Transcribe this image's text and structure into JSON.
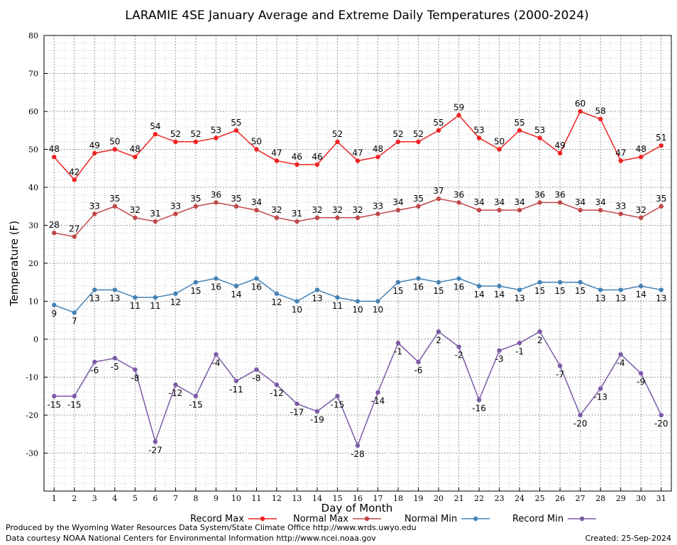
{
  "chart_data": {
    "type": "line",
    "title": "LARAMIE 4SE January Average and Extreme Daily Temperatures (2000-2024)",
    "xlabel": "Day of Month",
    "ylabel": "Temperature (F)",
    "ylim": [
      -40,
      80
    ],
    "yticks": [
      -30,
      -20,
      -10,
      0,
      10,
      20,
      30,
      40,
      50,
      60,
      70,
      80
    ],
    "xlim": [
      0.5,
      31.5
    ],
    "x": [
      1,
      2,
      3,
      4,
      5,
      6,
      7,
      8,
      9,
      10,
      11,
      12,
      13,
      14,
      15,
      16,
      17,
      18,
      19,
      20,
      21,
      22,
      23,
      24,
      25,
      26,
      27,
      28,
      29,
      30,
      31
    ],
    "grid": true,
    "legend_position": "bottom",
    "series": [
      {
        "name": "Record Max",
        "color": "#ee2222",
        "values": [
          48,
          42,
          49,
          50,
          48,
          54,
          52,
          52,
          53,
          55,
          50,
          47,
          46,
          46,
          52,
          47,
          48,
          52,
          52,
          55,
          59,
          53,
          50,
          55,
          53,
          49,
          60,
          58,
          47,
          48,
          51
        ]
      },
      {
        "name": "Normal Max",
        "color": "#c04848",
        "values": [
          28,
          27,
          33,
          35,
          32,
          31,
          33,
          35,
          36,
          35,
          34,
          32,
          31,
          32,
          32,
          32,
          33,
          34,
          35,
          37,
          36,
          34,
          34,
          34,
          36,
          36,
          34,
          34,
          33,
          32,
          35
        ]
      },
      {
        "name": "Normal Min",
        "color": "#4682b4",
        "values": [
          9,
          7,
          13,
          13,
          11,
          11,
          12,
          15,
          16,
          14,
          16,
          12,
          10,
          13,
          11,
          10,
          10,
          15,
          16,
          15,
          16,
          14,
          14,
          13,
          15,
          15,
          15,
          13,
          13,
          14,
          13
        ]
      },
      {
        "name": "Record Min",
        "color": "#7b5aa6",
        "values": [
          -15,
          -15,
          -6,
          -5,
          -8,
          -27,
          -12,
          -15,
          -4,
          -11,
          -8,
          -12,
          -17,
          -19,
          -15,
          -28,
          -14,
          -1,
          -6,
          2,
          -2,
          -16,
          -3,
          -1,
          2,
          -7,
          -20,
          -13,
          -4,
          -9,
          -20
        ]
      }
    ]
  },
  "footer": {
    "produced_by": "Produced by the Wyoming Water Resources Data System/State Climate Office http://www.wrds.uwyo.edu",
    "data_courtesy": "Data courtesy NOAA National Centers for Environmental Information http://www.ncei.noaa.gov",
    "created": "Created:  25-Sep-2024"
  }
}
